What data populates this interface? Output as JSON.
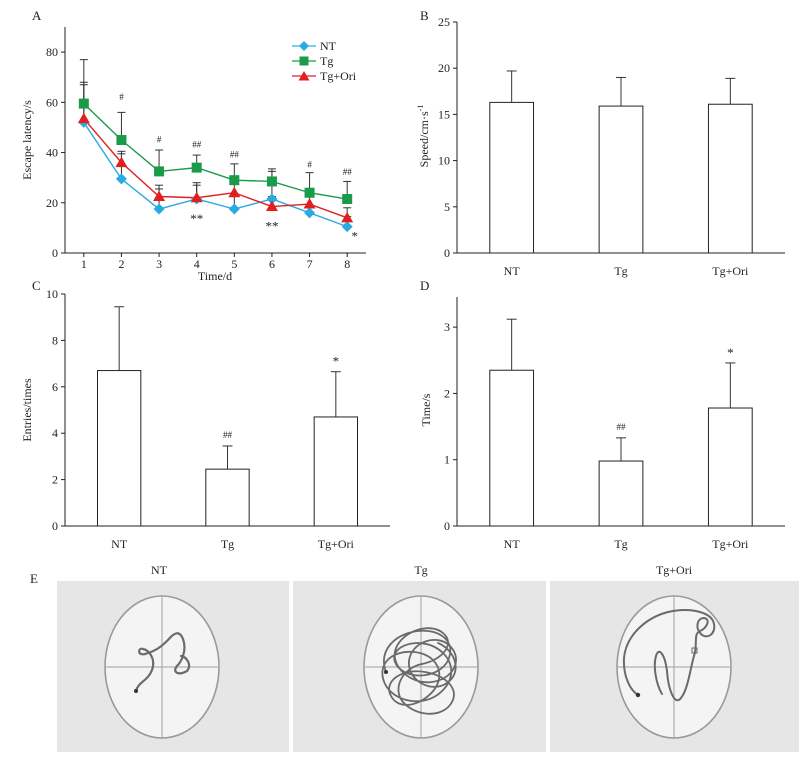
{
  "colors": {
    "NT": "#29abe2",
    "Tg": "#1a9b4a",
    "Tg+Ori": "#e02020",
    "axis": "#222222",
    "panel_bg": "#e6e6e6",
    "arena_bg": "#f4f4f4",
    "track": "#6a6a6a"
  },
  "chart_data": [
    {
      "panel": "A",
      "type": "line",
      "x": [
        1,
        2,
        3,
        4,
        5,
        6,
        7,
        8
      ],
      "xlabel": "Time/d",
      "ylabel": "Escape latency/s",
      "xlim": [
        0.5,
        8.5
      ],
      "ylim": [
        0,
        90
      ],
      "yticks": [
        0,
        20,
        40,
        60,
        80
      ],
      "series": [
        {
          "name": "NT",
          "marker": "diamond",
          "values": [
            52,
            29.5,
            17.5,
            21.5,
            17.5,
            21.5,
            16,
            10.5
          ],
          "errors": [
            15,
            10,
            8,
            5.5,
            5,
            11,
            7,
            4
          ]
        },
        {
          "name": "Tg",
          "marker": "square",
          "values": [
            59.5,
            45,
            32.5,
            34,
            29,
            28.5,
            24,
            21.5
          ],
          "errors": [
            17.5,
            11,
            8.5,
            5,
            6.5,
            5,
            8,
            7
          ]
        },
        {
          "name": "Tg+Ori",
          "marker": "triangle",
          "values": [
            53.5,
            36,
            22.5,
            22,
            24,
            18.5,
            19.5,
            14
          ],
          "errors": [
            14.5,
            4.5,
            4.5,
            6,
            4,
            4,
            3,
            4
          ]
        }
      ],
      "annotations": [
        {
          "x": 2,
          "y": 61,
          "text": "#"
        },
        {
          "x": 3,
          "y": 44,
          "text": "#"
        },
        {
          "x": 4,
          "y": 42,
          "text": "##"
        },
        {
          "x": 5,
          "y": 38,
          "text": "##"
        },
        {
          "x": 7,
          "y": 34,
          "text": "#"
        },
        {
          "x": 8,
          "y": 31,
          "text": "##"
        },
        {
          "x": 4,
          "y": 12,
          "text": "**"
        },
        {
          "x": 6,
          "y": 9,
          "text": "**"
        },
        {
          "x": 8.2,
          "y": 5,
          "text": "*"
        }
      ]
    },
    {
      "panel": "B",
      "type": "bar",
      "categories": [
        "NT",
        "Tg",
        "Tg+Ori"
      ],
      "values": [
        16.3,
        15.9,
        16.1
      ],
      "errors": [
        3.4,
        3.1,
        2.8
      ],
      "ylabel": "Speed/cm·s",
      "ylabel_sup": "-1",
      "ylim": [
        0,
        25
      ],
      "yticks": [
        0,
        5,
        10,
        15,
        20,
        25
      ],
      "annotations": []
    },
    {
      "panel": "C",
      "type": "bar",
      "categories": [
        "NT",
        "Tg",
        "Tg+Ori"
      ],
      "values": [
        6.7,
        2.45,
        4.7
      ],
      "errors": [
        2.75,
        1.0,
        1.95
      ],
      "ylabel": "Entries/times",
      "ylim": [
        0,
        10
      ],
      "yticks": [
        0,
        2,
        4,
        6,
        8,
        10
      ],
      "annotations": [
        {
          "category": "Tg",
          "text": "##"
        },
        {
          "category": "Tg+Ori",
          "text": "*"
        }
      ]
    },
    {
      "panel": "D",
      "type": "bar",
      "categories": [
        "NT",
        "Tg",
        "Tg+Ori"
      ],
      "values": [
        2.35,
        0.98,
        1.78
      ],
      "errors": [
        0.77,
        0.35,
        0.68
      ],
      "ylabel": "Time/s",
      "ylim": [
        0,
        3.5
      ],
      "yticks": [
        0,
        1,
        2,
        3
      ],
      "annotations": [
        {
          "category": "Tg",
          "text": "##"
        },
        {
          "category": "Tg+Ori",
          "text": "*"
        }
      ]
    }
  ],
  "panel_e": {
    "label": "E",
    "arenas": [
      {
        "title": "NT"
      },
      {
        "title": "Tg"
      },
      {
        "title": "Tg+Ori"
      }
    ]
  }
}
